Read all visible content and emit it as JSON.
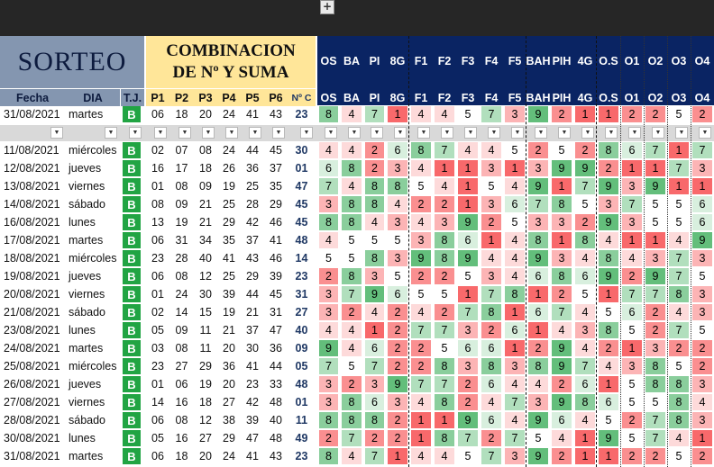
{
  "header": {
    "sorteo_title": "SORTEO",
    "combo_line1": "COMBINACION",
    "combo_line2": "DE Nº  Y SUMA",
    "left_sub": [
      "Fecha",
      "DIA",
      "T.J.",
      "P1",
      "P2",
      "P3",
      "P4",
      "P5",
      "P6",
      "Nº C"
    ],
    "cols_top": [
      "OS",
      "BA",
      "PI",
      "8G",
      "F1",
      "F2",
      "F3",
      "F4",
      "F5",
      "BAH",
      "PIH",
      "4G",
      "O.S",
      "O1",
      "O2",
      "O3",
      "O4"
    ],
    "cols_sub": [
      "OS",
      "BA",
      "PI",
      "8G",
      "F1",
      "F2",
      "F3",
      "F4",
      "F5",
      "BAH",
      "PIH",
      "4G",
      "O.S",
      "O1",
      "O2",
      "O3",
      "O4"
    ],
    "expand_button": "+"
  },
  "colors": {
    "navy": "#0a2463",
    "slate": "#8496b0",
    "yellow": "#ffe699",
    "tj_green": "#21a443",
    "suma_blue": "#1f3864",
    "heat_low": "#f8696b",
    "heat_mid": "#ffffff",
    "heat_high": "#63be7b"
  },
  "top_row": {
    "fecha": "31/08/2021",
    "dia": "martes",
    "tj": "B",
    "p": [
      "06",
      "18",
      "20",
      "24",
      "41",
      "43"
    ],
    "nc": "23",
    "vals": [
      "8",
      "4",
      "7",
      "1",
      "4",
      "4",
      "5",
      "7",
      "3",
      "9",
      "2",
      "1",
      "1",
      "2",
      "2",
      "5",
      "2"
    ]
  },
  "rows": [
    {
      "fecha": "11/08/2021",
      "dia": "miércoles",
      "tj": "B",
      "p": [
        "02",
        "07",
        "08",
        "24",
        "44",
        "45"
      ],
      "nc": "30",
      "vals": [
        "4",
        "4",
        "2",
        "6",
        "8",
        "7",
        "4",
        "4",
        "5",
        "2",
        "5",
        "2",
        "8",
        "6",
        "7",
        "1",
        "7"
      ]
    },
    {
      "fecha": "12/08/2021",
      "dia": "jueves",
      "tj": "B",
      "p": [
        "16",
        "17",
        "18",
        "26",
        "36",
        "37"
      ],
      "nc": "01",
      "vals": [
        "6",
        "8",
        "2",
        "3",
        "4",
        "1",
        "1",
        "3",
        "1",
        "3",
        "9",
        "9",
        "2",
        "1",
        "1",
        "7",
        "3"
      ]
    },
    {
      "fecha": "13/08/2021",
      "dia": "viernes",
      "tj": "B",
      "p": [
        "01",
        "08",
        "09",
        "19",
        "25",
        "35"
      ],
      "nc": "47",
      "vals": [
        "7",
        "4",
        "8",
        "8",
        "5",
        "4",
        "1",
        "5",
        "4",
        "9",
        "1",
        "7",
        "9",
        "3",
        "9",
        "1",
        "1"
      ]
    },
    {
      "fecha": "14/08/2021",
      "dia": "sábado",
      "tj": "B",
      "p": [
        "08",
        "09",
        "21",
        "25",
        "28",
        "29"
      ],
      "nc": "45",
      "vals": [
        "3",
        "8",
        "8",
        "4",
        "2",
        "2",
        "1",
        "3",
        "6",
        "7",
        "8",
        "5",
        "3",
        "7",
        "5",
        "5",
        "6"
      ]
    },
    {
      "fecha": "16/08/2021",
      "dia": "lunes",
      "tj": "B",
      "p": [
        "13",
        "19",
        "21",
        "29",
        "42",
        "46"
      ],
      "nc": "45",
      "vals": [
        "8",
        "8",
        "4",
        "3",
        "4",
        "3",
        "9",
        "2",
        "5",
        "3",
        "3",
        "2",
        "9",
        "3",
        "5",
        "5",
        "6"
      ]
    },
    {
      "fecha": "17/08/2021",
      "dia": "martes",
      "tj": "B",
      "p": [
        "06",
        "31",
        "34",
        "35",
        "37",
        "41"
      ],
      "nc": "48",
      "vals": [
        "4",
        "5",
        "5",
        "5",
        "3",
        "8",
        "6",
        "1",
        "4",
        "8",
        "1",
        "8",
        "4",
        "1",
        "1",
        "4",
        "9"
      ]
    },
    {
      "fecha": "18/08/2021",
      "dia": "miércoles",
      "tj": "B",
      "p": [
        "23",
        "28",
        "40",
        "41",
        "43",
        "46"
      ],
      "nc": "14",
      "vals": [
        "5",
        "5",
        "8",
        "3",
        "9",
        "8",
        "9",
        "4",
        "4",
        "9",
        "3",
        "4",
        "8",
        "4",
        "3",
        "7",
        "3"
      ]
    },
    {
      "fecha": "19/08/2021",
      "dia": "jueves",
      "tj": "B",
      "p": [
        "06",
        "08",
        "12",
        "25",
        "29",
        "39"
      ],
      "nc": "23",
      "vals": [
        "2",
        "8",
        "3",
        "5",
        "2",
        "2",
        "5",
        "3",
        "4",
        "6",
        "8",
        "6",
        "9",
        "2",
        "9",
        "7",
        "5"
      ]
    },
    {
      "fecha": "20/08/2021",
      "dia": "viernes",
      "tj": "B",
      "p": [
        "01",
        "24",
        "30",
        "39",
        "44",
        "45"
      ],
      "nc": "31",
      "vals": [
        "3",
        "7",
        "9",
        "6",
        "5",
        "5",
        "1",
        "7",
        "8",
        "1",
        "2",
        "5",
        "1",
        "7",
        "7",
        "8",
        "3"
      ]
    },
    {
      "fecha": "21/08/2021",
      "dia": "sábado",
      "tj": "B",
      "p": [
        "02",
        "14",
        "15",
        "19",
        "21",
        "31"
      ],
      "nc": "27",
      "vals": [
        "3",
        "2",
        "4",
        "2",
        "4",
        "2",
        "7",
        "8",
        "1",
        "6",
        "7",
        "4",
        "5",
        "6",
        "2",
        "4",
        "3"
      ]
    },
    {
      "fecha": "23/08/2021",
      "dia": "lunes",
      "tj": "B",
      "p": [
        "05",
        "09",
        "11",
        "21",
        "37",
        "47"
      ],
      "nc": "40",
      "vals": [
        "4",
        "4",
        "1",
        "2",
        "7",
        "7",
        "3",
        "2",
        "6",
        "1",
        "4",
        "3",
        "8",
        "5",
        "2",
        "7",
        "5"
      ]
    },
    {
      "fecha": "24/08/2021",
      "dia": "martes",
      "tj": "B",
      "p": [
        "03",
        "08",
        "11",
        "20",
        "30",
        "36"
      ],
      "nc": "09",
      "vals": [
        "9",
        "4",
        "6",
        "2",
        "2",
        "5",
        "6",
        "6",
        "1",
        "2",
        "9",
        "4",
        "2",
        "1",
        "3",
        "2",
        "2"
      ]
    },
    {
      "fecha": "25/08/2021",
      "dia": "miércoles",
      "tj": "B",
      "p": [
        "23",
        "27",
        "29",
        "36",
        "41",
        "44"
      ],
      "nc": "05",
      "vals": [
        "7",
        "5",
        "7",
        "2",
        "2",
        "8",
        "3",
        "8",
        "3",
        "8",
        "9",
        "7",
        "4",
        "3",
        "8",
        "5",
        "2"
      ]
    },
    {
      "fecha": "26/08/2021",
      "dia": "jueves",
      "tj": "B",
      "p": [
        "01",
        "06",
        "19",
        "20",
        "23",
        "33"
      ],
      "nc": "48",
      "vals": [
        "3",
        "2",
        "3",
        "9",
        "7",
        "7",
        "2",
        "6",
        "4",
        "4",
        "2",
        "6",
        "1",
        "5",
        "8",
        "8",
        "3"
      ]
    },
    {
      "fecha": "27/08/2021",
      "dia": "viernes",
      "tj": "B",
      "p": [
        "14",
        "16",
        "18",
        "27",
        "42",
        "48"
      ],
      "nc": "01",
      "vals": [
        "3",
        "8",
        "6",
        "3",
        "4",
        "8",
        "2",
        "4",
        "7",
        "3",
        "9",
        "8",
        "6",
        "5",
        "5",
        "8",
        "4"
      ]
    },
    {
      "fecha": "28/08/2021",
      "dia": "sábado",
      "tj": "B",
      "p": [
        "06",
        "08",
        "12",
        "38",
        "39",
        "40"
      ],
      "nc": "11",
      "vals": [
        "8",
        "8",
        "8",
        "2",
        "1",
        "1",
        "9",
        "6",
        "4",
        "9",
        "6",
        "4",
        "5",
        "2",
        "7",
        "8",
        "3"
      ]
    },
    {
      "fecha": "30/08/2021",
      "dia": "lunes",
      "tj": "B",
      "p": [
        "05",
        "16",
        "27",
        "29",
        "47",
        "48"
      ],
      "nc": "49",
      "vals": [
        "2",
        "7",
        "2",
        "2",
        "1",
        "8",
        "7",
        "2",
        "7",
        "5",
        "4",
        "1",
        "9",
        "5",
        "7",
        "4",
        "1"
      ]
    },
    {
      "fecha": "31/08/2021",
      "dia": "martes",
      "tj": "B",
      "p": [
        "06",
        "18",
        "20",
        "24",
        "41",
        "43"
      ],
      "nc": "23",
      "vals": [
        "8",
        "4",
        "7",
        "1",
        "4",
        "4",
        "5",
        "7",
        "3",
        "9",
        "2",
        "1",
        "1",
        "2",
        "2",
        "5",
        "2"
      ]
    }
  ]
}
